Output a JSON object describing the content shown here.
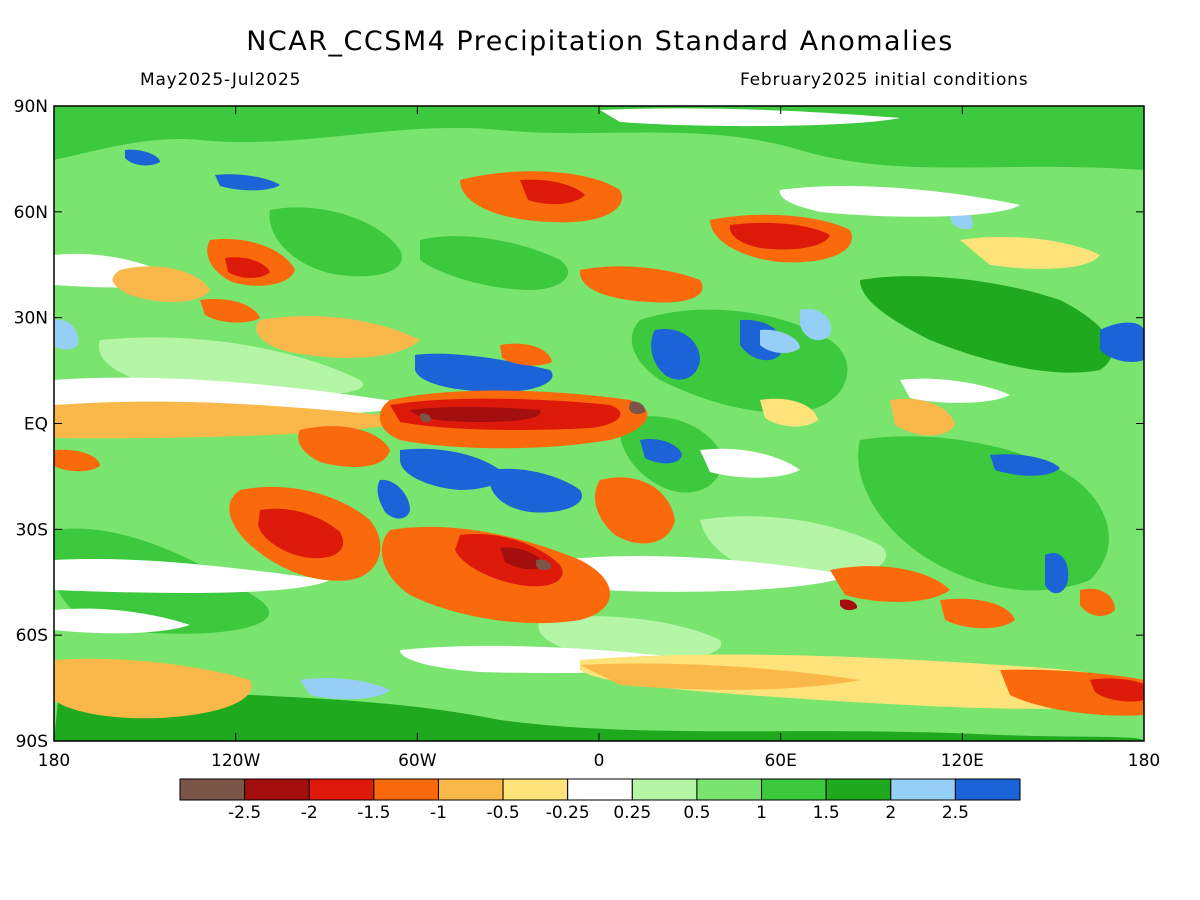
{
  "title": "NCAR_CCSM4 Precipitation Standard Anomalies",
  "subtitle_left": "May2025-Jul2025",
  "subtitle_right": "February2025 initial conditions",
  "lat_labels": [
    "90N",
    "60N",
    "30N",
    "EQ",
    "30S",
    "60S",
    "90S"
  ],
  "lon_labels": [
    "180",
    "120W",
    "60W",
    "0",
    "60E",
    "120E",
    "180"
  ],
  "colorbar": {
    "colors": [
      "#7a5548",
      "#a40e0e",
      "#dd1a0a",
      "#fa6a0c",
      "#fbb84a",
      "#fde37a",
      "#ffffff",
      "#b4f5a6",
      "#79e56f",
      "#3cc93d",
      "#1ea91e",
      "#96cff6",
      "#1b63d6"
    ],
    "labels": [
      "-2.5",
      "-2",
      "-1.5",
      "-1",
      "-0.5",
      "-0.25",
      "0.25",
      "0.5",
      "1",
      "1.5",
      "2",
      "2.5"
    ]
  },
  "map_colors": {
    "neg": [
      "#fde37a",
      "#fbb84a",
      "#fa6a0c",
      "#dd1a0a",
      "#a40e0e",
      "#7a5548"
    ],
    "pos": [
      "#b4f5a6",
      "#79e56f",
      "#3cc93d",
      "#1ea91e",
      "#96cff6",
      "#1b63d6"
    ]
  }
}
